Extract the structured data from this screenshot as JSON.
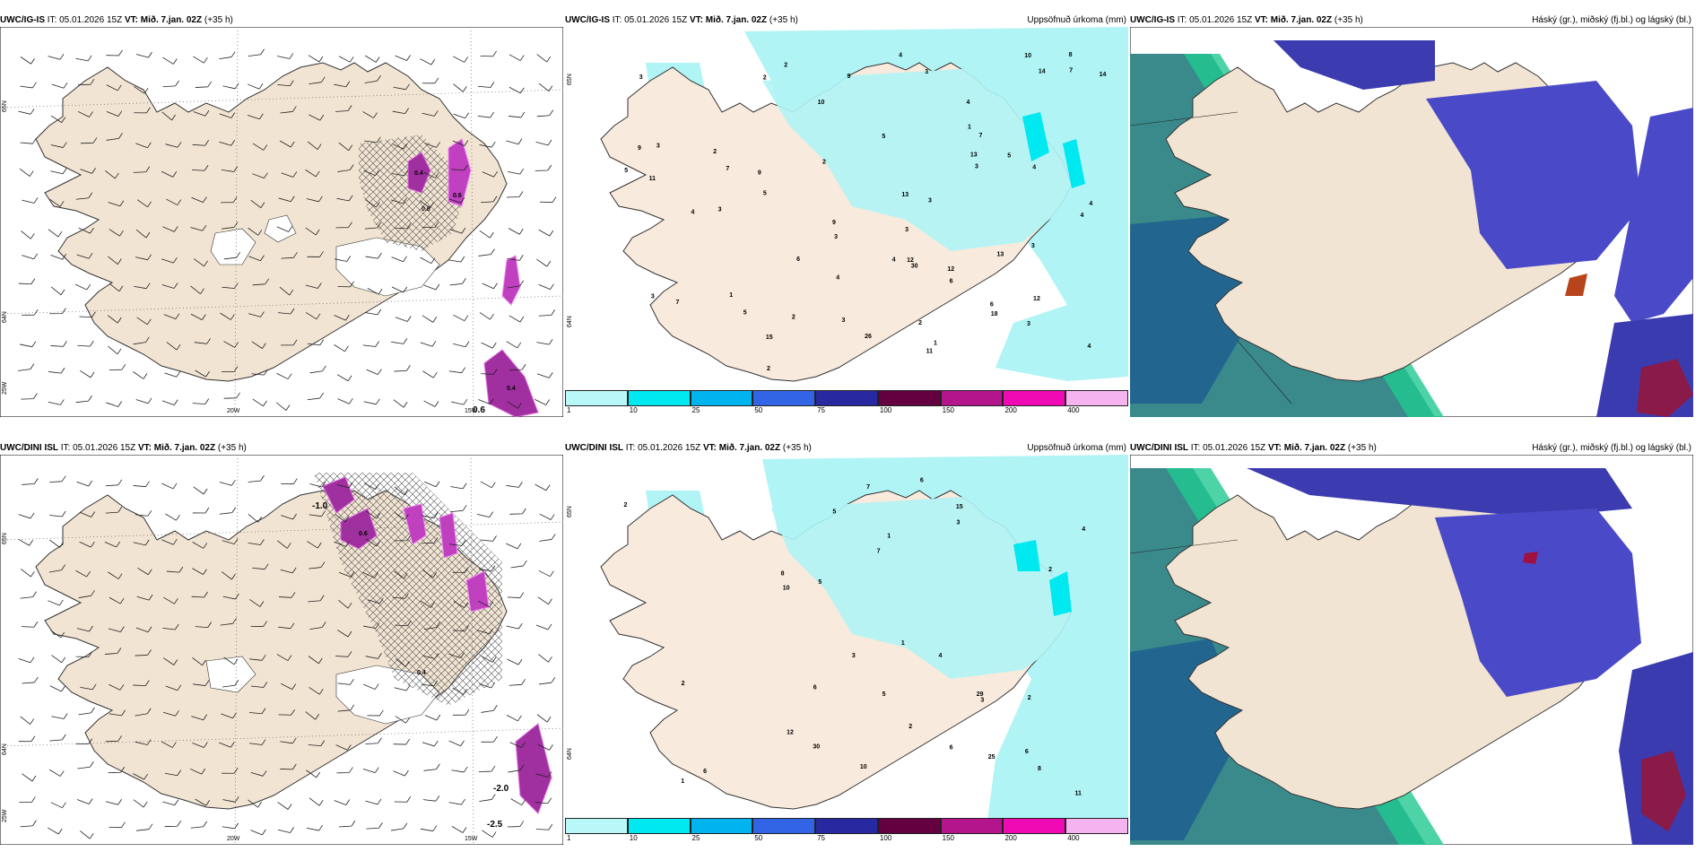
{
  "panels": [
    {
      "id": "p1",
      "model": "UWC/IG-IS",
      "it": "IT: 05.01.2026 15Z",
      "vt_label": "VT:",
      "vt_value": "Mið. 7.jan. 02Z",
      "lead": "(+35 h)",
      "right_title": "",
      "lat_top": "65N",
      "lat_bot": "64N",
      "lon_left": "20W",
      "lon_right": "15W",
      "edge_left": "25W",
      "edge_val": "0.6",
      "lat_right_top": "",
      "lat_right_bot": ""
    },
    {
      "id": "p2",
      "model": "UWC/IG-IS",
      "it": "IT: 05.01.2026 15Z",
      "vt_label": "VT:",
      "vt_value": "Mið. 7.jan. 02Z",
      "lead": "(+35 h)",
      "right_title": "Uppsöfnuð úrkoma (mm)",
      "lat_top": "",
      "lat_bot": "",
      "lon_left": "",
      "lon_right": "",
      "edge_left": "",
      "edge_val": "",
      "lat_right_top": "65N",
      "lat_right_bot": "64N"
    },
    {
      "id": "p3",
      "model": "UWC/IG-IS",
      "it": "IT: 05.01.2026 15Z",
      "vt_label": "VT:",
      "vt_value": "Mið. 7.jan. 02Z",
      "lead": "(+35 h)",
      "right_title": "Háský (gr.), miðský (fj.bl.) og lágský (bl.)",
      "lat_top": "",
      "lat_bot": "",
      "lon_left": "",
      "lon_right": "",
      "edge_left": "",
      "edge_val": "",
      "lat_right_top": "",
      "lat_right_bot": ""
    },
    {
      "id": "p4",
      "model": "UWC/DINI ISL",
      "it": "IT: 05.01.2026 15Z",
      "vt_label": "VT:",
      "vt_value": "Mið. 7.jan. 02Z",
      "lead": "(+35 h)",
      "right_title": "",
      "lat_top": "65N",
      "lat_bot": "64N",
      "lon_left": "20W",
      "lon_right": "15W",
      "edge_left": "25W",
      "edge_val": "-2.5",
      "lat_right_top": "",
      "lat_right_bot": ""
    },
    {
      "id": "p5",
      "model": "UWC/DINI ISL",
      "it": "IT: 05.01.2026 15Z",
      "vt_label": "VT:",
      "vt_value": "Mið. 7.jan. 02Z",
      "lead": "(+35 h)",
      "right_title": "Uppsöfnuð úrkoma (mm)",
      "lat_top": "",
      "lat_bot": "",
      "lon_left": "",
      "lon_right": "",
      "edge_left": "",
      "edge_val": "",
      "lat_right_top": "65N",
      "lat_right_bot": "64N"
    },
    {
      "id": "p6",
      "model": "UWC/DINI ISL",
      "it": "IT: 05.01.2026 15Z",
      "vt_label": "VT:",
      "vt_value": "Mið. 7.jan. 02Z",
      "lead": "(+35 h)",
      "right_title": "Háský (gr.), miðský (fj.bl.) og lágský (bl.)",
      "lat_top": "",
      "lat_bot": "",
      "lon_left": "",
      "lon_right": "",
      "edge_left": "",
      "edge_val": "",
      "lat_right_top": "",
      "lat_right_bot": ""
    }
  ],
  "colorbar": {
    "labels": [
      "1",
      "10",
      "25",
      "50",
      "75",
      "100",
      "150",
      "200",
      "400"
    ],
    "colors": [
      "#b8f8f8",
      "#00e8f0",
      "#00b4f0",
      "#3264e6",
      "#2828a0",
      "#640040",
      "#b4148c",
      "#f00ab4",
      "#f5b4f0"
    ]
  },
  "precip_top": [
    "1",
    "2",
    "1",
    "2",
    "5",
    "2",
    "4",
    "5",
    "3",
    "5",
    "7",
    "9",
    "9",
    "12",
    "3",
    "10",
    "11",
    "14",
    "13",
    "4",
    "6",
    "30",
    "15",
    "18",
    "3",
    "7",
    "3",
    "7",
    "26",
    "10",
    "6",
    "8",
    "4",
    "2",
    "2",
    "3",
    "4",
    "3",
    "4",
    "12",
    "9",
    "13",
    "14",
    "12",
    "3",
    "3",
    "4",
    "4",
    "3",
    "7",
    "6",
    "5",
    "9",
    "1",
    "3",
    "4",
    "3",
    "2",
    "2",
    "3",
    "5",
    "11",
    "13",
    "4"
  ],
  "precip_bottom": [
    "1",
    "2",
    "1",
    "5",
    "5",
    "6",
    "6",
    "15",
    "25",
    "12",
    "11",
    "10",
    "30",
    "7",
    "6",
    "8",
    "29",
    "2",
    "3",
    "4",
    "2",
    "6",
    "10",
    "4",
    "3",
    "3",
    "5",
    "7",
    "2",
    "2",
    "8",
    "6",
    "1"
  ],
  "wind_top_labels": [
    "0.4",
    "0.6",
    "0.6",
    "0.4",
    "0.6"
  ],
  "wind_bottom_labels": [
    "-1.0",
    "0.6",
    "-2.0",
    "0.4"
  ]
}
